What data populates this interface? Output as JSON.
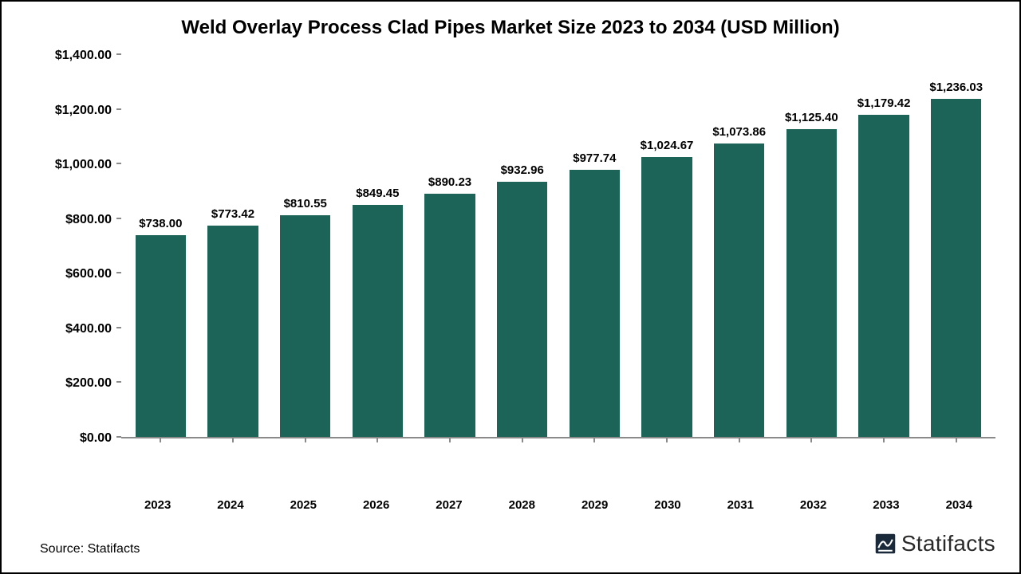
{
  "chart": {
    "type": "bar",
    "title": "Weld Overlay Process Clad Pipes Market Size 2023 to 2034 (USD Million)",
    "title_fontsize": 24,
    "title_fontweight": 700,
    "background_color": "#ffffff",
    "border_color": "#000000",
    "axis_line_color": "#8a8a8a",
    "font_family": "Arial",
    "ylim": [
      0,
      1400
    ],
    "ytick_step": 200,
    "y_ticks": [
      "$0.00",
      "$200.00",
      "$400.00",
      "$600.00",
      "$800.00",
      "$1,000.00",
      "$1,200.00",
      "$1,400.00"
    ],
    "y_tick_fontsize": 16,
    "x_label_fontsize": 15,
    "bar_label_fontsize": 15,
    "bar_color": "#1b6457",
    "bar_width": 0.7,
    "categories": [
      "2023",
      "2024",
      "2025",
      "2026",
      "2027",
      "2028",
      "2029",
      "2030",
      "2031",
      "2032",
      "2033",
      "2034"
    ],
    "values": [
      738.0,
      773.42,
      810.55,
      849.45,
      890.23,
      932.96,
      977.74,
      1024.67,
      1073.86,
      1125.4,
      1179.42,
      1236.03
    ],
    "value_labels": [
      "$738.00",
      "$773.42",
      "$810.55",
      "$849.45",
      "$890.23",
      "$932.96",
      "$977.74",
      "$1,024.67",
      "$1,073.86",
      "$1,125.40",
      "$1,179.42",
      "$1,236.03"
    ]
  },
  "footer": {
    "source_text": "Source: Statifacts",
    "brand_name": "Statifacts",
    "brand_color": "#2a2a2a",
    "brand_icon_color": "#1a2a3a"
  }
}
